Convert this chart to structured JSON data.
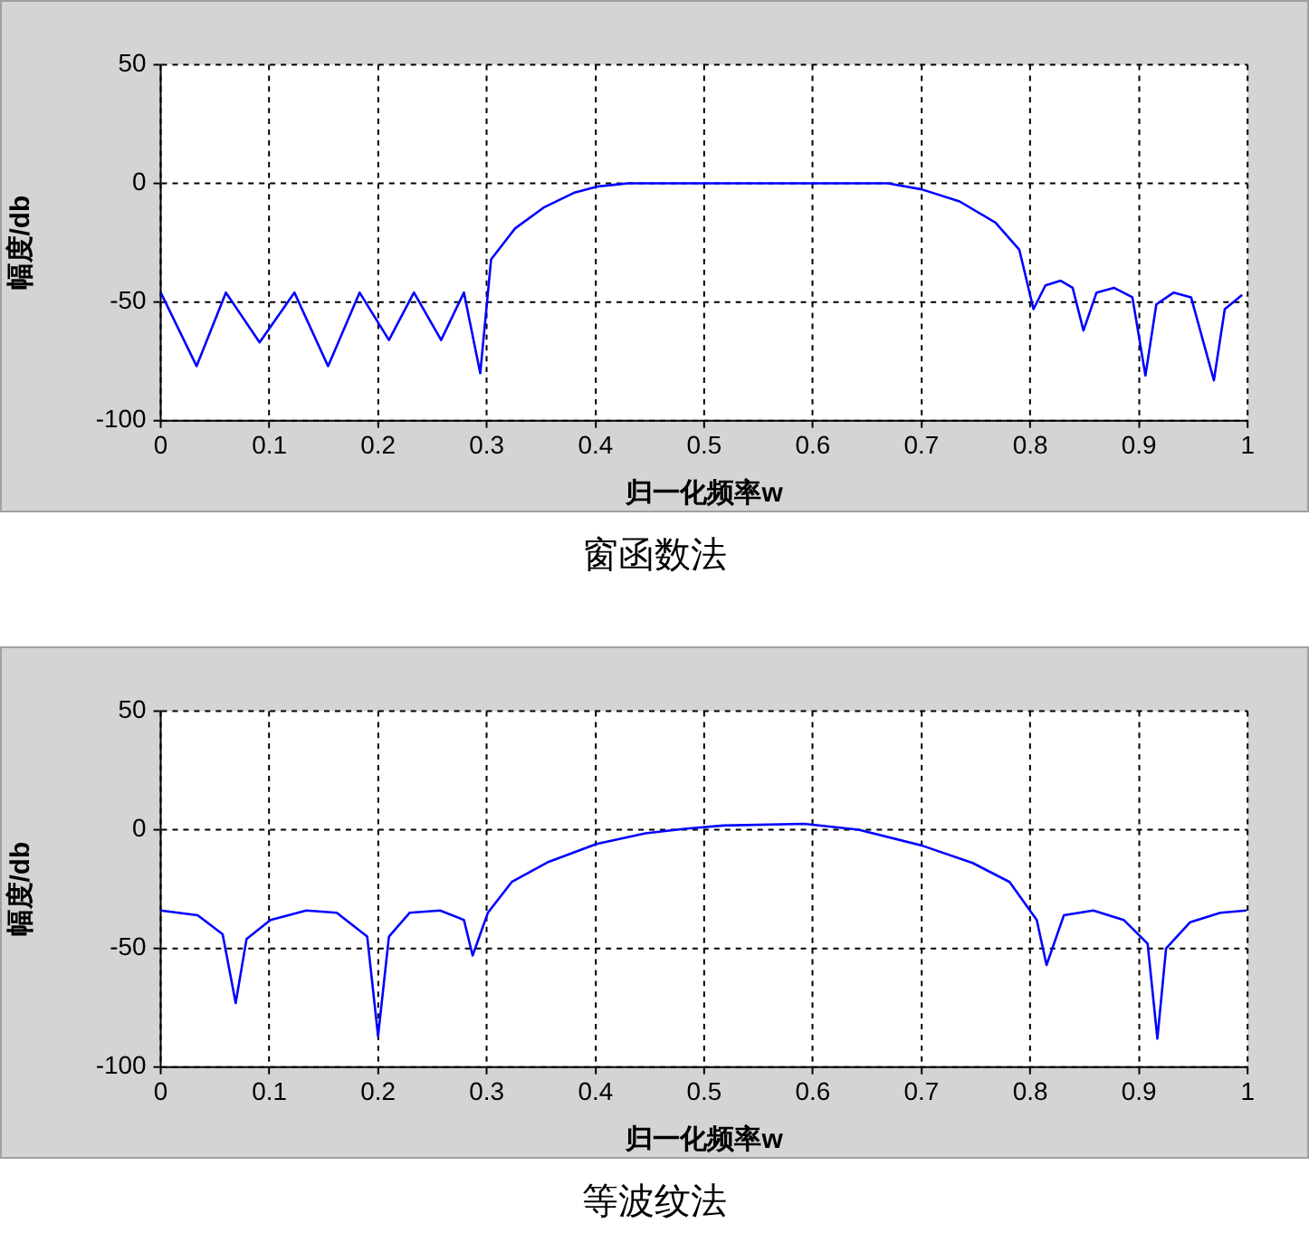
{
  "chart_data": [
    {
      "type": "line",
      "title": "窗函数法",
      "xlabel": "归一化频率w",
      "ylabel": "幅度/db",
      "xlim": [
        0,
        1
      ],
      "ylim": [
        -100,
        50
      ],
      "xticks": [
        0,
        0.1,
        0.2,
        0.3,
        0.4,
        0.5,
        0.6,
        0.7,
        0.8,
        0.9,
        1
      ],
      "yticks": [
        -100,
        -50,
        0,
        50
      ],
      "grid": true,
      "legend": false,
      "series": [
        {
          "color": "#0000ff",
          "x": [
            0,
            0.033,
            0.06,
            0.091,
            0.123,
            0.154,
            0.183,
            0.21,
            0.233,
            0.258,
            0.279,
            0.294,
            0.304,
            0.326,
            0.353,
            0.38,
            0.402,
            0.419,
            0.43,
            0.5,
            0.6,
            0.669,
            0.7,
            0.735,
            0.768,
            0.79,
            0.803,
            0.814,
            0.828,
            0.839,
            0.849,
            0.861,
            0.877,
            0.894,
            0.906,
            0.916,
            0.932,
            0.948,
            0.969,
            0.979,
            0.995
          ],
          "values": [
            -46,
            -77,
            -46,
            -67,
            -46,
            -77,
            -46,
            -66,
            -46,
            -66,
            -46,
            -80,
            -32,
            -19,
            -10,
            -4,
            -1.3,
            -0.5,
            0,
            0,
            0,
            0,
            -2.5,
            -7.6,
            -16.5,
            -28,
            -53,
            -43,
            -41,
            -44,
            -62,
            -46,
            -44,
            -48,
            -81,
            -51,
            -46,
            -48,
            -83,
            -53,
            -47
          ]
        }
      ]
    },
    {
      "type": "line",
      "title": "等波纹法",
      "xlabel": "归一化频率w",
      "ylabel": "幅度/db",
      "xlim": [
        0,
        1
      ],
      "ylim": [
        -100,
        50
      ],
      "xticks": [
        0,
        0.1,
        0.2,
        0.3,
        0.4,
        0.5,
        0.6,
        0.7,
        0.8,
        0.9,
        1
      ],
      "yticks": [
        -100,
        -50,
        0,
        50
      ],
      "grid": true,
      "legend": false,
      "series": [
        {
          "color": "#0000ff",
          "x": [
            0,
            0.034,
            0.057,
            0.069,
            0.079,
            0.101,
            0.134,
            0.162,
            0.19,
            0.2,
            0.21,
            0.229,
            0.257,
            0.279,
            0.287,
            0.301,
            0.323,
            0.357,
            0.401,
            0.446,
            0.484,
            0.518,
            0.592,
            0.642,
            0.7,
            0.747,
            0.781,
            0.806,
            0.815,
            0.831,
            0.858,
            0.886,
            0.908,
            0.917,
            0.925,
            0.947,
            0.975,
            0.999
          ],
          "values": [
            -34,
            -36,
            -44,
            -73,
            -46,
            -38,
            -34,
            -35,
            -45,
            -87,
            -45,
            -35,
            -34,
            -38,
            -53,
            -35,
            -22,
            -13.5,
            -6,
            -1.5,
            0.5,
            1.8,
            2.5,
            0,
            -6.6,
            -14,
            -22,
            -38,
            -57,
            -36,
            -34,
            -38,
            -48,
            -88,
            -50,
            -39,
            -35,
            -34
          ]
        }
      ]
    }
  ]
}
